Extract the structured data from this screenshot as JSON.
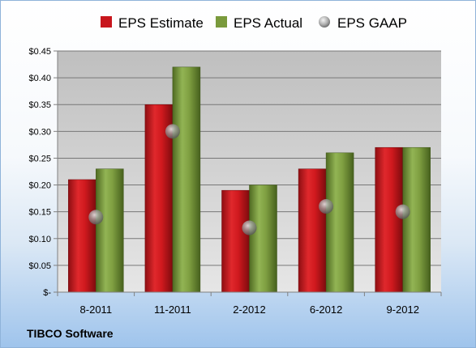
{
  "chart_data": {
    "type": "bar",
    "categories": [
      "8-2011",
      "11-2011",
      "2-2012",
      "6-2012",
      "9-2012"
    ],
    "series": [
      {
        "name": "EPS Estimate",
        "kind": "bar",
        "color": "#c8161d",
        "values": [
          0.21,
          0.35,
          0.19,
          0.23,
          0.27
        ]
      },
      {
        "name": "EPS Actual",
        "kind": "bar",
        "color": "#7a9a3c",
        "values": [
          0.23,
          0.42,
          0.2,
          0.26,
          0.27
        ]
      },
      {
        "name": "EPS GAAP",
        "kind": "marker",
        "color": "#a0a0a0",
        "values": [
          0.14,
          0.3,
          0.12,
          0.16,
          0.15
        ]
      }
    ],
    "y_ticks": [
      "$-",
      "$0.05",
      "$0.10",
      "$0.15",
      "$0.20",
      "$0.25",
      "$0.30",
      "$0.35",
      "$0.40",
      "$0.45"
    ],
    "ylim": [
      0,
      0.45
    ],
    "grid": true,
    "legend_position": "top",
    "title": "",
    "xlabel": "",
    "ylabel": ""
  },
  "footer": {
    "company": "TIBCO Software"
  }
}
